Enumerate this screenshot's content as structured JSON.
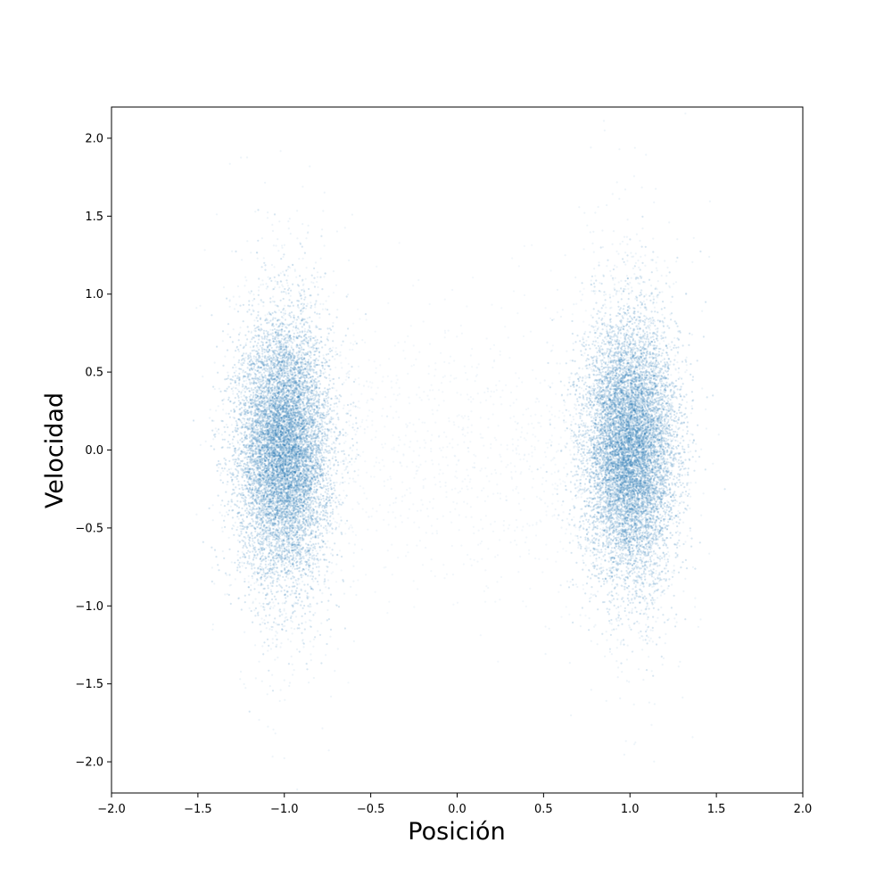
{
  "chart_data": {
    "type": "scatter",
    "title": "",
    "xlabel": "Posición",
    "ylabel": "Velocidad",
    "xlim": [
      -2.0,
      2.0
    ],
    "ylim": [
      -2.2,
      2.2
    ],
    "xticks": [
      -2.0,
      -1.5,
      -1.0,
      -0.5,
      0.0,
      0.5,
      1.0,
      1.5,
      2.0
    ],
    "xtick_labels": [
      "−2.0",
      "−1.5",
      "−1.0",
      "−0.5",
      "0.0",
      "0.5",
      "1.0",
      "1.5",
      "2.0"
    ],
    "yticks": [
      -2.0,
      -1.5,
      -1.0,
      -0.5,
      0.0,
      0.5,
      1.0,
      1.5,
      2.0
    ],
    "ytick_labels": [
      "−2.0",
      "−1.5",
      "−1.0",
      "−0.5",
      "0.0",
      "0.5",
      "1.0",
      "1.5",
      "2.0"
    ],
    "grid": false,
    "marker_color": "#1f77b4",
    "clusters": [
      {
        "center_x": -1.0,
        "center_y": 0.0,
        "std_x": 0.13,
        "std_y": 0.4
      },
      {
        "center_x": 1.0,
        "center_y": 0.0,
        "std_x": 0.13,
        "std_y": 0.4
      }
    ]
  }
}
